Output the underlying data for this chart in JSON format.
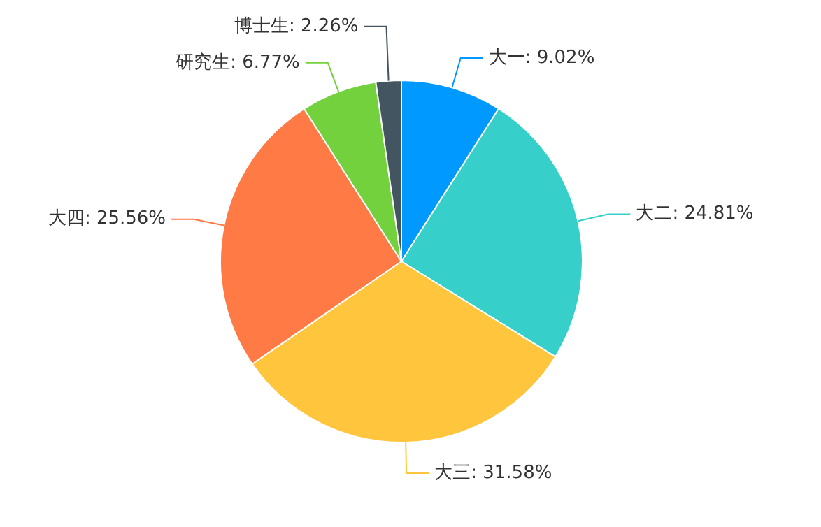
{
  "chart_data": {
    "type": "pie",
    "categories": [
      "大一",
      "大二",
      "大三",
      "大四",
      "研究生",
      "博士生"
    ],
    "values": [
      9.02,
      24.81,
      31.58,
      25.56,
      6.77,
      2.26
    ],
    "colors": [
      "#0099ff",
      "#36cfc9",
      "#ffc53d",
      "#ff7a45",
      "#73d13d",
      "#435560"
    ],
    "value_labels": [
      "9.02%",
      "24.81%",
      "31.58%",
      "25.56%",
      "6.77%",
      "2.26%"
    ]
  }
}
